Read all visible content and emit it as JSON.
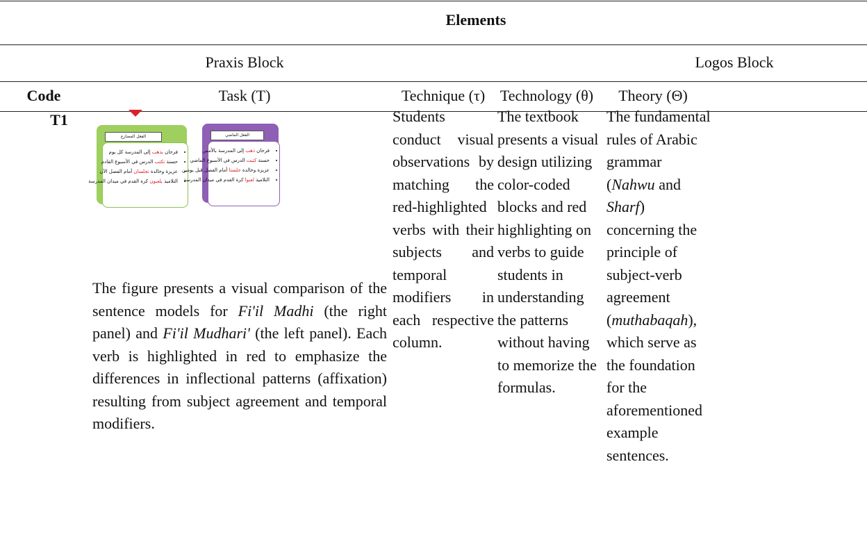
{
  "table": {
    "group_header": "Elements",
    "blocks": [
      "Praxis Block",
      "Logos Block"
    ],
    "columns": [
      "Code",
      "Task (T)",
      "Technique (τ)",
      "Technology (θ)",
      "Theory (Θ)"
    ],
    "rows": [
      {
        "code": "T1",
        "figure": {
          "left": {
            "title": "الفعل المضارع",
            "items": [
              [
                "فرحان ",
                "يذهب",
                " إلى المدرسة كل يوم"
              ],
              [
                "حسنة ",
                "تكتب",
                " الدرس في الأسبوع القادم"
              ],
              [
                "عزيزة وخالدة ",
                "تجلسان",
                " أمام الفصل الآن"
              ],
              [
                "التلاميذ ",
                "يلعبون",
                " كرة القدم في ميدان المدرسة"
              ]
            ]
          },
          "right": {
            "title": "الفعل الماضي",
            "items": [
              [
                "فرحان ",
                "ذهب",
                " إلى المدرسة بالأمس"
              ],
              [
                "حسنة ",
                "كتبت",
                " الدرس في الأسبوع الماضي"
              ],
              [
                "عزيزة وخالدة ",
                "جلستا",
                " أمام الفصل قبل يومين"
              ],
              [
                "التلاميذ ",
                "لعبوا",
                " كرة القدم في ميدان المدرسة"
              ]
            ]
          }
        },
        "task": [
          " The figure presents a visual comparison of the sentence models for ",
          "Fi'il Madhi",
          " (the right panel) and ",
          "Fi'il Mudhari'",
          " (the left panel). Each verb is highlighted in red to emphasize the differences in inflectional patterns (affixation) resulting from subject agreement and temporal modifiers."
        ],
        "technique": "Students conduct visual observations by matching the red-highlighted verbs with their subjects and temporal modifiers in each respective column.",
        "technology": "The textbook presents a visual design utilizing color-coded blocks and red highlighting on verbs to guide students in understanding the patterns without having to memorize the formulas.",
        "theory": [
          "The fundamental rules of Arabic grammar (",
          "Nahwu",
          " and ",
          "Sharf",
          ") concerning the principle of subject-verb agreement (",
          "muthabaqah",
          "), which serve as the foundation for the aforementioned example sentences."
        ]
      }
    ]
  }
}
